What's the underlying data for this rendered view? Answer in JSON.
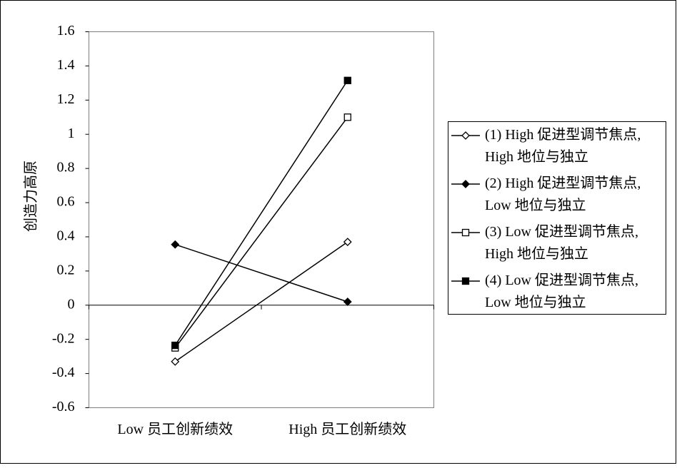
{
  "chart_data": {
    "type": "line",
    "y_label": "创造力高原",
    "categories": [
      "Low 员工创新绩效",
      "High 员工创新绩效"
    ],
    "ylim": [
      -0.6,
      1.6
    ],
    "yticks": [
      -0.6,
      -0.4,
      -0.2,
      0,
      0.2,
      0.4,
      0.6,
      0.8,
      1,
      1.2,
      1.4,
      1.6
    ],
    "legend": "right",
    "series": [
      {
        "name": "(1) High 促进型调节焦点,\nHigh 地位与独立",
        "color": "#000000",
        "marker": "diamond-open",
        "values": [
          -0.33,
          0.37
        ]
      },
      {
        "name": "(2) High 促进型调节焦点,\nLow 地位与独立",
        "color": "#000000",
        "marker": "diamond-filled",
        "values": [
          0.355,
          0.02
        ]
      },
      {
        "name": "(3) Low 促进型调节焦点,\nHigh 地位与独立",
        "color": "#000000",
        "marker": "square-open",
        "values": [
          -0.25,
          1.1
        ]
      },
      {
        "name": "(4) Low 促进型调节焦点,\nLow 地位与独立",
        "color": "#000000",
        "marker": "square-filled",
        "values": [
          -0.235,
          1.315
        ]
      }
    ]
  }
}
